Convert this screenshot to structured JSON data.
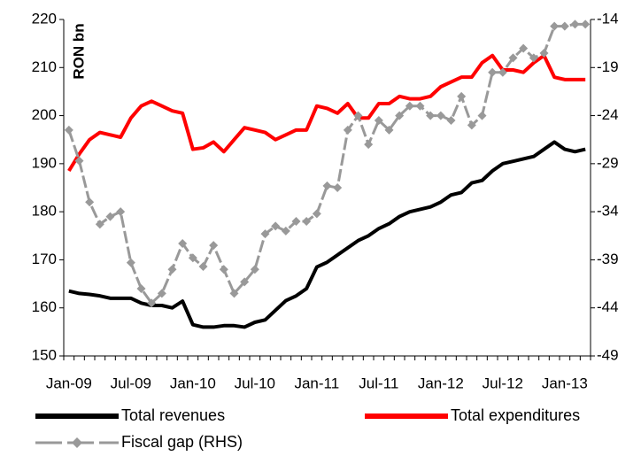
{
  "chart_data": {
    "type": "line",
    "y_label": "RON bn",
    "categories": [
      "Jan-09",
      null,
      null,
      null,
      null,
      null,
      "Jul-09",
      null,
      null,
      null,
      null,
      null,
      "Jan-10",
      null,
      null,
      null,
      null,
      null,
      "Jul-10",
      null,
      null,
      null,
      null,
      null,
      "Jan-11",
      null,
      null,
      null,
      null,
      null,
      "Jul-11",
      null,
      null,
      null,
      null,
      null,
      "Jan-12",
      null,
      null,
      null,
      null,
      null,
      "Jul-12",
      null,
      null,
      null,
      null,
      null,
      "Jan-13",
      null,
      null
    ],
    "series": [
      {
        "name": "Total revenues",
        "color": "#000000",
        "axis": "y",
        "values": [
          163.5,
          163,
          162.8,
          162.5,
          162,
          162,
          162,
          161,
          160.5,
          160.5,
          160,
          161.4,
          156.5,
          156,
          156,
          156.3,
          156.3,
          156,
          157,
          157.5,
          159.5,
          161.5,
          162.5,
          164,
          168.5,
          169.5,
          171,
          172.5,
          174,
          175,
          176.5,
          177.5,
          179,
          180,
          180.5,
          181,
          182,
          183.5,
          184,
          186,
          186.5,
          188.5,
          190,
          190.5,
          191,
          191.5,
          193,
          194.5,
          193,
          192.5,
          193
        ]
      },
      {
        "name": "Total expenditures",
        "color": "#ff0000",
        "axis": "y",
        "values": [
          188.5,
          192,
          195,
          196.5,
          196,
          195.5,
          199.5,
          202,
          203,
          202,
          201,
          200.5,
          193,
          193.3,
          194.5,
          192.5,
          195,
          197.5,
          197,
          196.5,
          195,
          196,
          197,
          197,
          202,
          201.5,
          200.5,
          202.5,
          199.5,
          199.5,
          202.5,
          202.5,
          204,
          203.5,
          203.5,
          204,
          206,
          207,
          208,
          208,
          211,
          212.5,
          209.5,
          209.5,
          209,
          211,
          212.5,
          208,
          207.5,
          207.5,
          207.5
        ]
      },
      {
        "name": "Fiscal gap (RHS)",
        "color": "#999999",
        "axis": "y2",
        "values": [
          -25.5,
          -28.7,
          -33,
          -35.3,
          -34.5,
          -34,
          -39.3,
          -42,
          -43.5,
          -42.5,
          -40,
          -37.3,
          -38.8,
          -39.7,
          -37.5,
          -40,
          -42.5,
          -41.3,
          -40,
          -36.3,
          -35.5,
          -36,
          -35,
          -35,
          -34.2,
          -31.3,
          -31.5,
          -25.5,
          -24,
          -27,
          -24.5,
          -25.5,
          -24,
          -23,
          -23,
          -24,
          -24,
          -24.5,
          -22,
          -25,
          -24,
          -19.5,
          -19.5,
          -18,
          -17,
          -18,
          -17.5,
          -14.7,
          -14.7,
          -14.5,
          -14.5
        ]
      }
    ],
    "ylim": [
      150,
      220
    ],
    "yticks": [
      150,
      160,
      170,
      180,
      190,
      200,
      210,
      220
    ],
    "y2lim": [
      -49,
      -14
    ],
    "y2ticks": [
      -49,
      -44,
      -39,
      -34,
      -29,
      -24,
      -19,
      -14
    ],
    "legend": "bottom"
  }
}
